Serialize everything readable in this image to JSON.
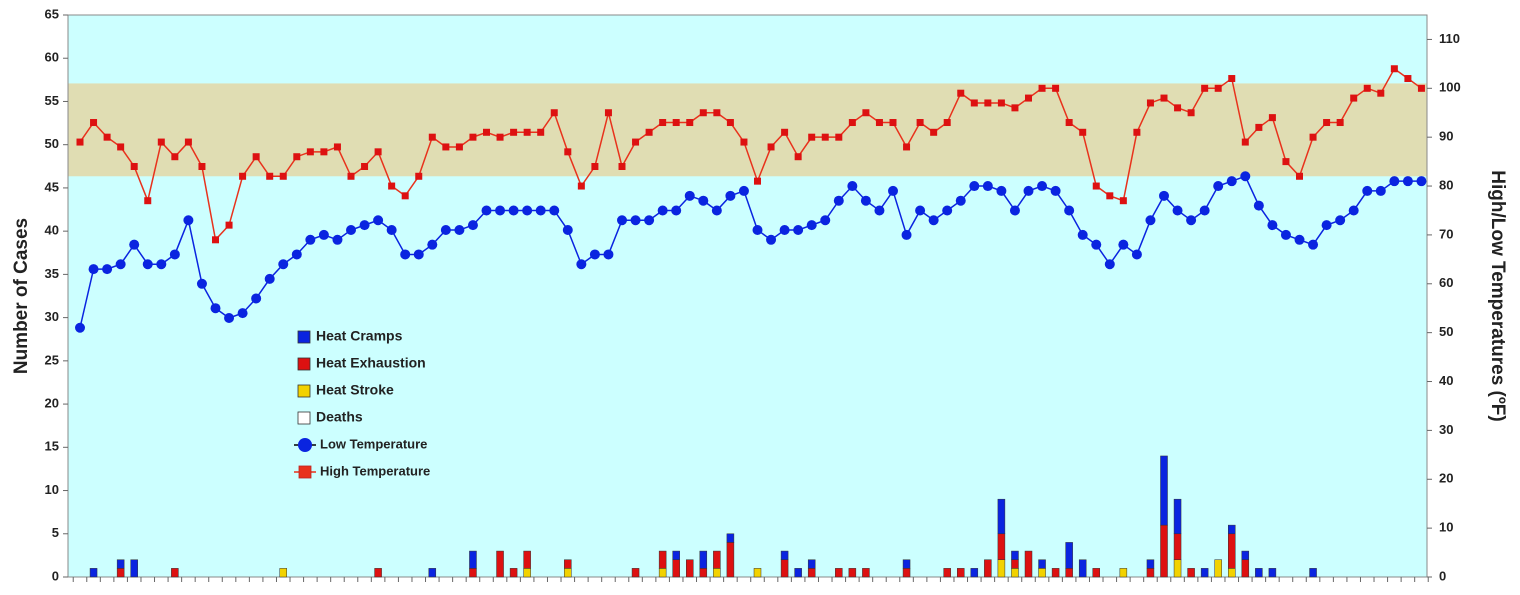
{
  "chart_data": {
    "type": "bar",
    "ylabel": "Number of Cases",
    "y2label": "High/Low Temperatures (ºF)",
    "ylim": [
      0,
      65
    ],
    "yticks": [
      0,
      5,
      10,
      15,
      20,
      25,
      30,
      35,
      40,
      45,
      50,
      55,
      60,
      65
    ],
    "y2lim": [
      0,
      115
    ],
    "y2ticks": [
      0,
      10,
      20,
      30,
      40,
      50,
      60,
      70,
      80,
      90,
      100,
      110
    ],
    "background": "#ccffff",
    "band": {
      "range": [
        82,
        101
      ],
      "color": "#e0ddb3",
      "axis": "y2"
    },
    "legend": "center-left",
    "series": [
      {
        "name": "Heat Stroke",
        "color": "#f2d200",
        "type": "bar",
        "values": [
          0,
          0,
          0,
          0,
          0,
          0,
          0,
          0,
          0,
          0,
          0,
          0,
          0,
          0,
          0,
          1,
          0,
          0,
          0,
          0,
          0,
          0,
          0,
          0,
          0,
          0,
          0,
          0,
          0,
          0,
          0,
          0,
          0,
          1,
          0,
          0,
          1,
          0,
          0,
          0,
          0,
          0,
          0,
          1,
          0,
          0,
          0,
          1,
          0,
          0,
          1,
          0,
          0,
          0,
          0,
          0,
          0,
          0,
          0,
          0,
          0,
          0,
          0,
          0,
          0,
          0,
          0,
          0,
          2,
          1,
          0,
          1,
          0,
          0,
          0,
          0,
          0,
          1,
          0,
          0,
          0,
          2,
          0,
          0,
          2,
          1,
          0,
          0,
          0,
          0,
          0,
          0,
          0,
          0,
          0,
          0,
          0,
          0,
          0,
          0
        ]
      },
      {
        "name": "Heat Exhaustion",
        "color": "#dd1111",
        "type": "bar",
        "values": [
          0,
          0,
          0,
          1,
          0,
          0,
          0,
          1,
          0,
          0,
          0,
          0,
          0,
          0,
          0,
          0,
          0,
          0,
          0,
          0,
          0,
          0,
          1,
          0,
          0,
          0,
          0,
          0,
          0,
          1,
          0,
          3,
          1,
          2,
          0,
          0,
          1,
          0,
          0,
          0,
          0,
          1,
          0,
          2,
          2,
          2,
          1,
          2,
          4,
          0,
          0,
          0,
          2,
          0,
          1,
          0,
          1,
          1,
          1,
          0,
          0,
          1,
          0,
          0,
          1,
          1,
          0,
          2,
          3,
          1,
          3,
          0,
          1,
          1,
          0,
          1,
          0,
          0,
          0,
          1,
          6,
          3,
          1,
          0,
          0,
          4,
          2,
          0,
          0,
          0,
          0,
          0,
          0,
          0,
          0,
          0,
          0,
          0,
          0,
          0
        ]
      },
      {
        "name": "Heat Cramps",
        "color": "#0a24e0",
        "type": "bar",
        "values": [
          0,
          1,
          0,
          1,
          2,
          0,
          0,
          0,
          0,
          0,
          0,
          0,
          0,
          0,
          0,
          0,
          0,
          0,
          0,
          0,
          0,
          0,
          0,
          0,
          0,
          0,
          1,
          0,
          0,
          2,
          0,
          0,
          0,
          0,
          0,
          0,
          0,
          0,
          0,
          0,
          0,
          0,
          0,
          0,
          1,
          0,
          2,
          0,
          1,
          0,
          0,
          0,
          1,
          1,
          1,
          0,
          0,
          0,
          0,
          0,
          0,
          1,
          0,
          0,
          0,
          0,
          1,
          0,
          4,
          1,
          0,
          1,
          0,
          3,
          2,
          0,
          0,
          0,
          0,
          1,
          8,
          4,
          0,
          1,
          0,
          1,
          1,
          1,
          1,
          0,
          0,
          1,
          0,
          0,
          0,
          0,
          0,
          0,
          0,
          0
        ]
      },
      {
        "name": "Deaths",
        "color": "#ffffff",
        "type": "bar",
        "values": [
          0,
          0,
          0,
          0,
          0,
          0,
          0,
          0,
          0,
          0,
          0,
          0,
          0,
          0,
          0,
          0,
          0,
          0,
          0,
          0,
          0,
          0,
          0,
          0,
          0,
          0,
          0,
          0,
          0,
          0,
          0,
          0,
          0,
          0,
          0,
          0,
          0,
          0,
          0,
          0,
          0,
          0,
          0,
          0,
          0,
          0,
          0,
          0,
          0,
          0,
          0,
          0,
          0,
          0,
          0,
          0,
          0,
          0,
          0,
          0,
          0,
          0,
          0,
          0,
          0,
          0,
          0,
          0,
          0,
          0,
          0,
          0,
          0,
          0,
          0,
          0,
          0,
          0,
          0,
          0,
          0,
          0,
          0,
          0,
          0,
          0,
          0,
          0,
          0,
          0,
          0,
          0,
          0,
          0,
          0,
          0,
          0,
          0,
          0,
          0
        ]
      },
      {
        "name": "Low Temperature",
        "color": "#0a24e0",
        "type": "line",
        "marker": "circle",
        "axis": "y2",
        "values": [
          51,
          63,
          63,
          64,
          68,
          64,
          64,
          66,
          73,
          60,
          55,
          53,
          54,
          57,
          61,
          64,
          66,
          69,
          70,
          69,
          71,
          72,
          73,
          71,
          66,
          66,
          68,
          71,
          71,
          72,
          75,
          75,
          75,
          75,
          75,
          75,
          71,
          64,
          66,
          66,
          73,
          73,
          73,
          75,
          75,
          78,
          77,
          75,
          78,
          79,
          71,
          69,
          71,
          71,
          72,
          73,
          77,
          80,
          77,
          75,
          79,
          70,
          75,
          73,
          75,
          77,
          80,
          80,
          79,
          75,
          79,
          80,
          79,
          75,
          70,
          68,
          64,
          68,
          66,
          73,
          78,
          75,
          73,
          75,
          80,
          81,
          82,
          76,
          72,
          70,
          69,
          68,
          72,
          73,
          75,
          79,
          79,
          81,
          81,
          81
        ]
      },
      {
        "name": "High Temperature",
        "color": "#e8321c",
        "type": "line",
        "marker": "square",
        "axis": "y2",
        "values": [
          89,
          93,
          90,
          88,
          84,
          77,
          89,
          86,
          89,
          84,
          69,
          72,
          82,
          86,
          82,
          82,
          86,
          87,
          87,
          88,
          82,
          84,
          87,
          80,
          78,
          82,
          90,
          88,
          88,
          90,
          91,
          90,
          91,
          91,
          91,
          95,
          87,
          80,
          84,
          95,
          84,
          89,
          91,
          93,
          93,
          93,
          95,
          95,
          93,
          89,
          81,
          88,
          91,
          86,
          90,
          90,
          90,
          93,
          95,
          93,
          93,
          88,
          93,
          91,
          93,
          99,
          97,
          97,
          97,
          96,
          98,
          100,
          100,
          93,
          91,
          80,
          78,
          77,
          91,
          97,
          98,
          96,
          95,
          100,
          100,
          102,
          89,
          92,
          94,
          85,
          82,
          90,
          93,
          93,
          98,
          100,
          99,
          104,
          102,
          100
        ]
      }
    ]
  }
}
